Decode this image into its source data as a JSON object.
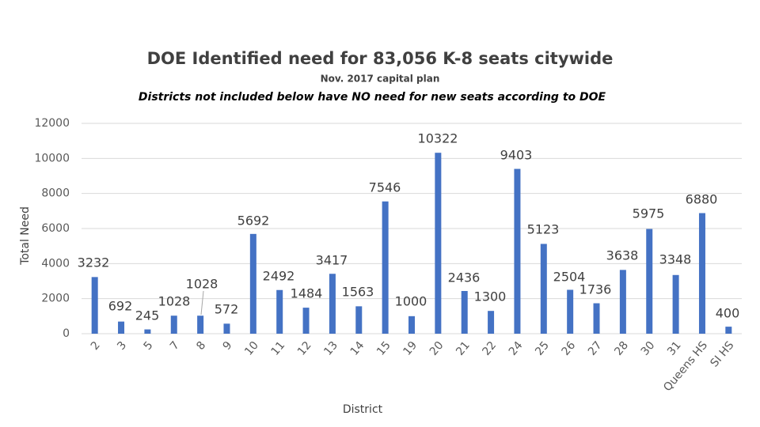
{
  "chart_data": {
    "type": "bar",
    "title": "DOE Identified need for 83,056 K-8 seats citywide",
    "subtitle": "Nov. 2017 capital plan",
    "note": "Districts not included below have NO need for new seats according to DOE",
    "x_label": "District",
    "y_label": "Total Need",
    "categories": [
      "2",
      "3",
      "5",
      "7",
      "8",
      "9",
      "10",
      "11",
      "12",
      "13",
      "14",
      "15",
      "19",
      "20",
      "21",
      "22",
      "24",
      "25",
      "26",
      "27",
      "28",
      "30",
      "31",
      "Queens HS",
      "SI HS"
    ],
    "values": [
      3232,
      692,
      245,
      1028,
      1028,
      572,
      5692,
      2492,
      1484,
      3417,
      1563,
      7546,
      1000,
      10322,
      2436,
      1300,
      9403,
      5123,
      2504,
      1736,
      3638,
      5975,
      3348,
      6880,
      400
    ],
    "color": "#4472c4",
    "ylim": [
      0,
      12000
    ],
    "yticks": [
      0,
      2000,
      4000,
      6000,
      8000,
      10000,
      12000
    ],
    "grid": true
  }
}
